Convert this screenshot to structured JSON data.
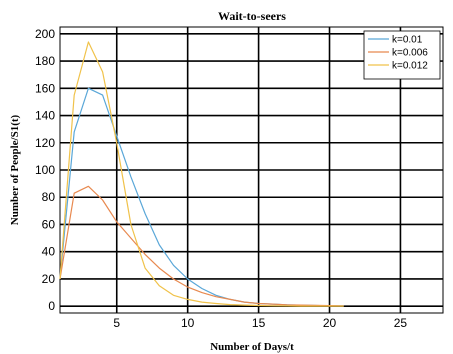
{
  "chart_data": {
    "type": "line",
    "title": "Wait-to-seers",
    "xlabel": "Number of Days/t",
    "ylabel": "Number of People/S1(t)",
    "xlim": [
      1,
      28
    ],
    "ylim": [
      -5,
      205
    ],
    "xticks": [
      5,
      10,
      15,
      20,
      25
    ],
    "yticks": [
      0,
      20,
      40,
      60,
      80,
      100,
      120,
      140,
      160,
      180,
      200
    ],
    "grid": true,
    "legend_position": "top-right",
    "series": [
      {
        "name": "k=0.01",
        "color": "#5aa7d8",
        "x": [
          1,
          2,
          3,
          4,
          5,
          6,
          7,
          8,
          9,
          10,
          11,
          12,
          13,
          14,
          15,
          16,
          17,
          18,
          19,
          20,
          21
        ],
        "y": [
          20,
          128,
          160,
          155,
          125,
          95,
          68,
          45,
          30,
          20,
          13,
          8,
          5,
          3,
          2,
          1.5,
          1,
          0.7,
          0.5,
          0.3,
          0.2
        ]
      },
      {
        "name": "k=0.006",
        "color": "#e8894f",
        "x": [
          1,
          2,
          3,
          4,
          5,
          6,
          7,
          8,
          9,
          10,
          11,
          12,
          13,
          14,
          15,
          16,
          17,
          18,
          19,
          20,
          21
        ],
        "y": [
          20,
          83,
          88,
          78,
          62,
          50,
          38,
          28,
          20,
          14,
          10,
          7,
          5,
          3,
          2,
          1.5,
          1,
          0.8,
          0.6,
          0.4,
          0.3
        ]
      },
      {
        "name": "k=0.012",
        "color": "#f0c24a",
        "x": [
          1,
          2,
          3,
          4,
          5,
          6,
          7,
          8,
          9,
          10,
          11,
          12,
          13,
          14,
          15,
          16,
          17,
          18,
          19,
          20,
          21
        ],
        "y": [
          20,
          155,
          194,
          172,
          120,
          60,
          28,
          15,
          8,
          5,
          3,
          2,
          1.2,
          0.8,
          0.5,
          0.3,
          0.2,
          0.1,
          0.1,
          0.05,
          0.05
        ]
      }
    ]
  }
}
